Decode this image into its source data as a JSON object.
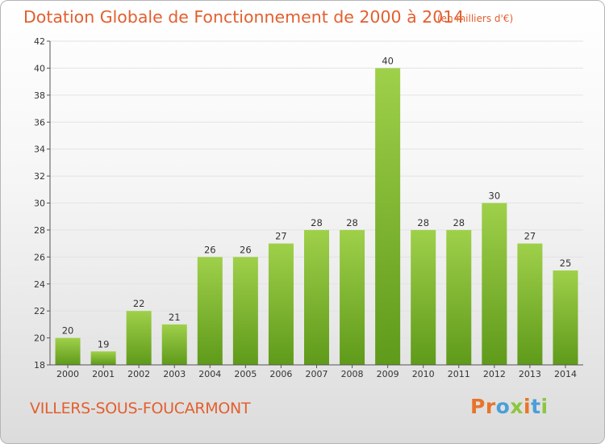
{
  "header": {
    "title": "Dotation Globale de Fonctionnement de 2000 à 2014",
    "unit": "(en milliers d'€)"
  },
  "footer": {
    "commune": "VILLERS-SOUS-FOUCARMONT",
    "logo_text": "Proxiti",
    "logo_letters": [
      "P",
      "r",
      "o",
      "x",
      "i",
      "t",
      "i"
    ],
    "logo_colors": [
      "#e8742a",
      "#e8742a",
      "#4a9fd8",
      "#8cc63f",
      "#e8742a",
      "#4a9fd8",
      "#8cc63f"
    ]
  },
  "colors": {
    "bar_light": "#9fd04a",
    "bar_dark": "#5f9a1a",
    "grid": "#e3e3e3",
    "axis": "#555555",
    "text": "#333333",
    "accent": "#e35f2f"
  },
  "chart_data": {
    "type": "bar",
    "title": "Dotation Globale de Fonctionnement de 2000 à 2014",
    "xlabel": "",
    "ylabel": "(en milliers d'€)",
    "categories": [
      "2000",
      "2001",
      "2002",
      "2003",
      "2004",
      "2005",
      "2006",
      "2007",
      "2008",
      "2009",
      "2010",
      "2011",
      "2012",
      "2013",
      "2014"
    ],
    "values": [
      20,
      19,
      22,
      21,
      26,
      26,
      27,
      28,
      28,
      40,
      28,
      28,
      30,
      27,
      25
    ],
    "ylim": [
      18,
      42
    ],
    "yticks": [
      18,
      20,
      22,
      24,
      26,
      28,
      30,
      32,
      34,
      36,
      38,
      40,
      42
    ],
    "grid": true,
    "data_labels": true
  }
}
